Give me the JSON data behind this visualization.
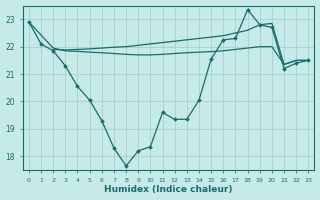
{
  "xlabel": "Humidex (Indice chaleur)",
  "bg_color": "#c5eae7",
  "grid_color": "#aad4d0",
  "line_color": "#1a6b6b",
  "xlim": [
    -0.5,
    23.5
  ],
  "ylim": [
    17.5,
    23.5
  ],
  "yticks": [
    18,
    19,
    20,
    21,
    22,
    23
  ],
  "xticks": [
    0,
    1,
    2,
    3,
    4,
    5,
    6,
    7,
    8,
    9,
    10,
    11,
    12,
    13,
    14,
    15,
    16,
    17,
    18,
    19,
    20,
    21,
    22,
    23
  ],
  "curve1_x": [
    0,
    1,
    2,
    3,
    4,
    5,
    6,
    7,
    8,
    9,
    10,
    11,
    12,
    13,
    14,
    15,
    16,
    17,
    18,
    19,
    20,
    21,
    22,
    23
  ],
  "curve1_y": [
    22.9,
    22.1,
    21.85,
    21.3,
    20.55,
    20.05,
    19.3,
    18.3,
    17.65,
    18.2,
    18.35,
    19.6,
    19.35,
    19.35,
    20.05,
    21.55,
    22.25,
    22.3,
    23.35,
    22.8,
    22.7,
    21.2,
    21.4,
    21.5
  ],
  "curve2_x": [
    0,
    2,
    3,
    4,
    5,
    6,
    7,
    8,
    9,
    10,
    11,
    12,
    13,
    14,
    15,
    16,
    17,
    18,
    19,
    20,
    21,
    22,
    23
  ],
  "curve2_y": [
    22.9,
    21.95,
    21.85,
    21.83,
    21.8,
    21.78,
    21.75,
    21.72,
    21.7,
    21.7,
    21.72,
    21.75,
    21.78,
    21.8,
    21.82,
    21.85,
    21.9,
    21.95,
    22.0,
    22.0,
    21.35,
    21.5,
    21.5
  ],
  "curve3_x": [
    2,
    3,
    4,
    5,
    6,
    7,
    8,
    9,
    10,
    11,
    12,
    13,
    14,
    15,
    16,
    17,
    18,
    19,
    20,
    21,
    22,
    23
  ],
  "curve3_y": [
    21.9,
    21.88,
    21.9,
    21.92,
    21.95,
    21.98,
    22.0,
    22.05,
    22.1,
    22.15,
    22.2,
    22.25,
    22.3,
    22.35,
    22.4,
    22.5,
    22.6,
    22.8,
    22.85,
    21.35,
    21.5,
    21.5
  ]
}
